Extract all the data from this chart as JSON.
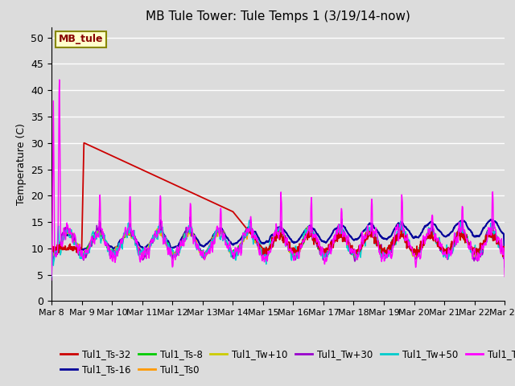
{
  "title": "MB Tule Tower: Tule Temps 1 (3/19/14-now)",
  "ylabel": "Temperature (C)",
  "ylim": [
    0,
    52
  ],
  "yticks": [
    0,
    5,
    10,
    15,
    20,
    25,
    30,
    35,
    40,
    45,
    50
  ],
  "bg_color": "#dcdcdc",
  "series_colors": {
    "Tul1_Ts-32": "#cc0000",
    "Tul1_Ts-16": "#000099",
    "Tul1_Ts-8": "#00cc00",
    "Tul1_Ts0": "#ff9900",
    "Tul1_Tw+10": "#cccc00",
    "Tul1_Tw+30": "#9900cc",
    "Tul1_Tw+50": "#00cccc",
    "Tul1_Tw+100": "#ff00ff"
  }
}
